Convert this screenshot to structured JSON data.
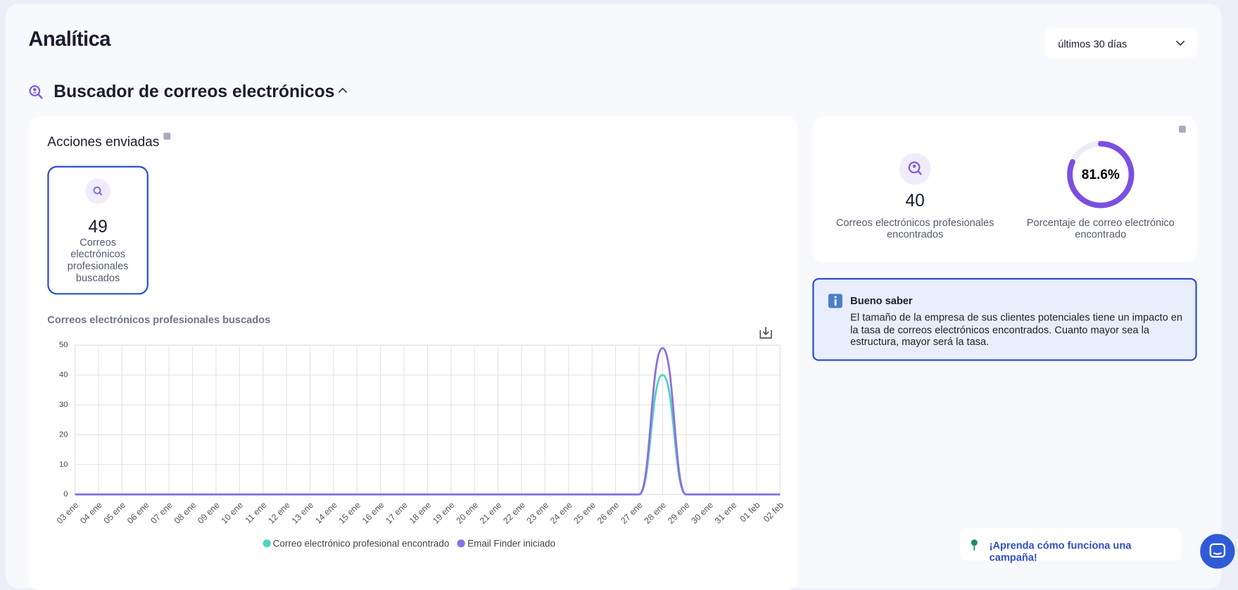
{
  "header": {
    "title": "Analítica",
    "period": "últimos 30 días"
  },
  "section": {
    "title": "Buscador de correos electrónicos"
  },
  "actions": {
    "title": "Acciones enviadas",
    "tile": {
      "value": 49,
      "label": "Correos electrónicos profesionales buscados"
    }
  },
  "stats": {
    "found": {
      "value": 40,
      "label": "Correos electrónicos profesionales encontrados"
    },
    "rate": {
      "value": 81.6,
      "value_label": "81.6%",
      "label": "Porcentaje de correo electrónico encontrado"
    }
  },
  "tip": {
    "title": "Bueno saber",
    "text": "El tamaño de la empresa de sus clientes potenciales tiene un impacto en la tasa de correos electrónicos encontrados. Cuanto mayor sea la estructura, mayor será la tasa."
  },
  "cta": "¡Aprenda cómo funciona una campaña!",
  "chart_data": {
    "type": "line",
    "title": "Correos electrónicos profesionales buscados",
    "categories": [
      "03 ene",
      "04 ene",
      "05 ene",
      "06 ene",
      "07 ene",
      "08 ene",
      "09 ene",
      "10 ene",
      "11 ene",
      "12 ene",
      "13 ene",
      "14 ene",
      "15 ene",
      "16 ene",
      "17 ene",
      "18 ene",
      "19 ene",
      "20 ene",
      "21 ene",
      "22 ene",
      "23 ene",
      "24 ene",
      "25 ene",
      "26 ene",
      "27 ene",
      "28 ene",
      "29 ene",
      "30 ene",
      "31 ene",
      "01 feb",
      "02 feb"
    ],
    "series": [
      {
        "name": "Correo electrónico profesional encontrado",
        "color": "#4fd3c1",
        "values": [
          0,
          0,
          0,
          0,
          0,
          0,
          0,
          0,
          0,
          0,
          0,
          0,
          0,
          0,
          0,
          0,
          0,
          0,
          0,
          0,
          0,
          0,
          0,
          0,
          0,
          40,
          0,
          0,
          0,
          0,
          0
        ]
      },
      {
        "name": "Email Finder iniciado",
        "color": "#8d6fe0",
        "values": [
          0,
          0,
          0,
          0,
          0,
          0,
          0,
          0,
          0,
          0,
          0,
          0,
          0,
          0,
          0,
          0,
          0,
          0,
          0,
          0,
          0,
          0,
          0,
          0,
          0,
          49,
          0,
          0,
          0,
          0,
          0
        ]
      }
    ],
    "ylim": [
      0,
      50
    ],
    "yticks": [
      0,
      10,
      20,
      30,
      40,
      50
    ],
    "grid": true,
    "smooth": true
  }
}
